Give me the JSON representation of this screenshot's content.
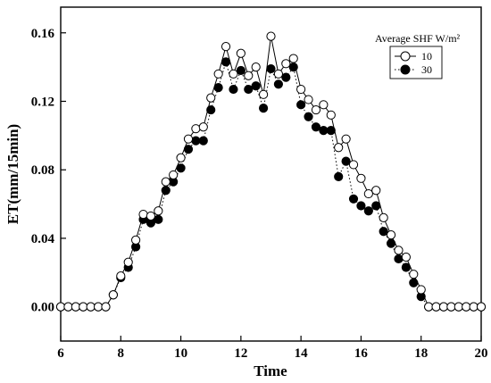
{
  "chart_data": {
    "type": "line",
    "title": "",
    "xlabel": "Time",
    "ylabel": "ET(mm/15min)",
    "xlim": [
      6,
      20
    ],
    "ylim": [
      -0.02,
      0.175
    ],
    "x_ticks": [
      6,
      8,
      10,
      12,
      14,
      16,
      18,
      20
    ],
    "x_tick_labels": [
      "6",
      "8",
      "10",
      "12",
      "14",
      "16",
      "18",
      "20"
    ],
    "y_ticks": [
      0.0,
      0.04,
      0.08,
      0.12,
      0.16
    ],
    "y_tick_labels": [
      "0.00",
      "0.04",
      "0.08",
      "0.12",
      "0.16"
    ],
    "grid": false,
    "legend": {
      "title": "Average SHF W/m²",
      "placement": "top-right"
    },
    "x": [
      6.0,
      6.25,
      6.5,
      6.75,
      7.0,
      7.25,
      7.5,
      7.75,
      8.0,
      8.25,
      8.5,
      8.75,
      9.0,
      9.25,
      9.5,
      9.75,
      10.0,
      10.25,
      10.5,
      10.75,
      11.0,
      11.25,
      11.5,
      11.75,
      12.0,
      12.25,
      12.5,
      12.75,
      13.0,
      13.25,
      13.5,
      13.75,
      14.0,
      14.25,
      14.5,
      14.75,
      15.0,
      15.25,
      15.5,
      15.75,
      16.0,
      16.25,
      16.5,
      16.75,
      17.0,
      17.25,
      17.5,
      17.75,
      18.0,
      18.25,
      18.5,
      18.75,
      19.0,
      19.25,
      19.5,
      19.75,
      20.0
    ],
    "series": [
      {
        "name": "10",
        "marker": "open-circle",
        "line": "solid",
        "values": [
          0.0,
          0.0,
          0.0,
          0.0,
          0.0,
          0.0,
          0.0,
          0.007,
          0.018,
          0.026,
          0.039,
          0.054,
          0.053,
          0.056,
          0.073,
          0.077,
          0.087,
          0.098,
          0.104,
          0.105,
          0.122,
          0.136,
          0.152,
          0.136,
          0.148,
          0.135,
          0.14,
          0.124,
          0.158,
          0.136,
          0.142,
          0.145,
          0.127,
          0.121,
          0.115,
          0.118,
          0.112,
          0.093,
          0.098,
          0.083,
          0.075,
          0.066,
          0.068,
          0.052,
          0.042,
          0.033,
          0.029,
          0.019,
          0.01,
          0.0,
          0.0,
          0.0,
          0.0,
          0.0,
          0.0,
          0.0,
          0.0
        ]
      },
      {
        "name": "30",
        "marker": "filled-circle",
        "line": "dotted",
        "values": [
          0.0,
          0.0,
          0.0,
          0.0,
          0.0,
          0.0,
          0.0,
          0.007,
          0.017,
          0.023,
          0.035,
          0.051,
          0.049,
          0.051,
          0.068,
          0.073,
          0.081,
          0.092,
          0.097,
          0.097,
          0.115,
          0.128,
          0.143,
          0.127,
          0.138,
          0.127,
          0.129,
          0.116,
          0.139,
          0.13,
          0.134,
          0.14,
          0.118,
          0.111,
          0.105,
          0.103,
          0.103,
          0.076,
          0.085,
          0.063,
          0.059,
          0.056,
          0.059,
          0.044,
          0.037,
          0.028,
          0.023,
          0.014,
          0.006,
          0.0,
          0.0,
          0.0,
          0.0,
          0.0,
          0.0,
          0.0,
          0.0
        ]
      }
    ]
  }
}
